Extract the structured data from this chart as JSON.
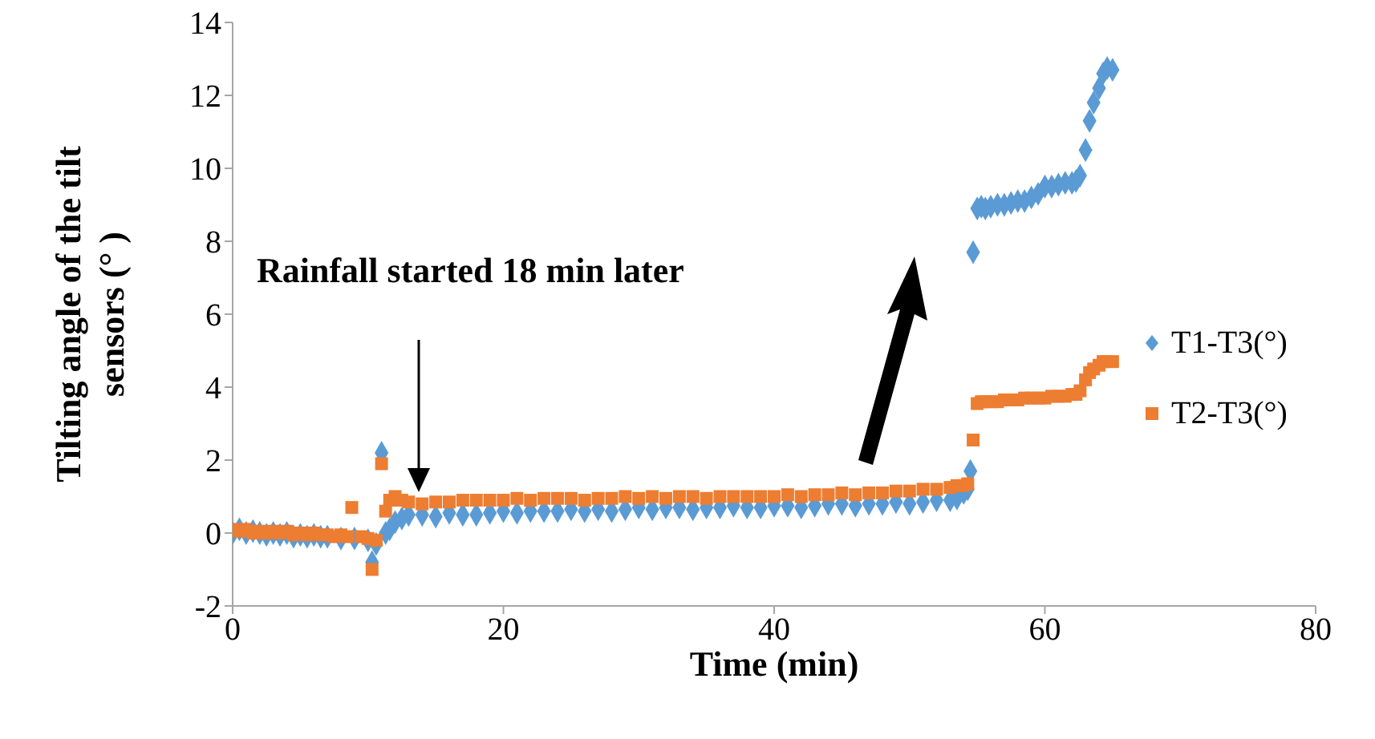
{
  "chart_data": {
    "type": "scatter",
    "xlabel": "Time (min)",
    "ylabel": "Tilting angle of the tilt sensors (° )",
    "xlim": [
      0,
      80
    ],
    "xticks": [
      0,
      20,
      40,
      60,
      80
    ],
    "ylim": [
      -2,
      14
    ],
    "yticks": [
      -2,
      0,
      2,
      4,
      6,
      8,
      10,
      12,
      14
    ],
    "grid": false,
    "legend": "right",
    "annotations": [
      "Rainfall started 18 min later"
    ],
    "series": [
      {
        "name": "T1-T3(°)",
        "color": "#5b9bd5",
        "marker": "diamond",
        "x": [
          0,
          0.5,
          1,
          1.5,
          2,
          2.5,
          3,
          3.5,
          4,
          4.5,
          5,
          5.5,
          6,
          6.5,
          7,
          7.5,
          8,
          8.5,
          9,
          9.5,
          10,
          10.3,
          10.6,
          11,
          11.3,
          11.6,
          12,
          12.5,
          13,
          14,
          15,
          16,
          17,
          18,
          19,
          20,
          21,
          22,
          23,
          24,
          25,
          26,
          27,
          28,
          29,
          30,
          31,
          32,
          33,
          34,
          35,
          36,
          37,
          38,
          39,
          40,
          41,
          42,
          43,
          44,
          45,
          46,
          47,
          48,
          49,
          50,
          51,
          52,
          53,
          53.5,
          54,
          54.3,
          54.5,
          54.7,
          55,
          55.3,
          55.6,
          56,
          56.5,
          57,
          57.5,
          58,
          58.5,
          59,
          59.5,
          60,
          60.5,
          61,
          61.5,
          62,
          62.3,
          62.6,
          63,
          63.3,
          63.6,
          64,
          64.3,
          64.6,
          65
        ],
        "values": [
          0,
          0.1,
          0,
          0.05,
          0,
          -0.05,
          0,
          -0.05,
          0,
          -0.1,
          -0.05,
          -0.1,
          -0.05,
          -0.1,
          -0.1,
          null,
          -0.15,
          null,
          -0.15,
          null,
          -0.2,
          -0.8,
          -0.3,
          2.2,
          0,
          0.1,
          0.3,
          0.4,
          0.5,
          0.5,
          0.45,
          0.55,
          0.5,
          0.5,
          0.55,
          0.6,
          0.55,
          0.6,
          0.6,
          0.6,
          0.65,
          0.6,
          0.65,
          0.6,
          0.65,
          0.7,
          0.65,
          0.7,
          0.7,
          0.65,
          0.7,
          0.7,
          0.75,
          0.7,
          0.7,
          0.75,
          0.75,
          0.7,
          0.75,
          0.8,
          0.8,
          0.75,
          0.8,
          0.8,
          0.85,
          0.8,
          0.85,
          0.9,
          0.9,
          0.95,
          1.1,
          1.2,
          1.7,
          7.7,
          8.9,
          8.95,
          8.9,
          8.95,
          9,
          9,
          9.05,
          9.1,
          9.1,
          9.2,
          9.3,
          9.5,
          9.5,
          9.55,
          9.6,
          9.6,
          9.65,
          9.8,
          10.5,
          11.3,
          11.8,
          12.2,
          12.6,
          12.75,
          12.7
        ]
      },
      {
        "name": "T2-T3(°)",
        "color": "#ed7d31",
        "marker": "square",
        "x": [
          0,
          0.5,
          1,
          1.5,
          2,
          2.5,
          3,
          3.5,
          4,
          4.5,
          5,
          5.5,
          6,
          6.5,
          7,
          7.5,
          8,
          8.5,
          8.8,
          9.5,
          10,
          10.3,
          10.6,
          11,
          11.3,
          11.6,
          12,
          12.5,
          13,
          14,
          15,
          16,
          17,
          18,
          19,
          20,
          21,
          22,
          23,
          24,
          25,
          26,
          27,
          28,
          29,
          30,
          31,
          32,
          33,
          34,
          35,
          36,
          37,
          38,
          39,
          40,
          41,
          42,
          43,
          44,
          45,
          46,
          47,
          48,
          49,
          50,
          51,
          52,
          53,
          53.5,
          54,
          54.3,
          54.7,
          55,
          55.3,
          55.6,
          56,
          56.5,
          57,
          57.5,
          58,
          58.5,
          59,
          59.5,
          60,
          60.5,
          61,
          61.5,
          62,
          62.3,
          62.6,
          63,
          63.3,
          63.6,
          64,
          64.3,
          64.6,
          65
        ],
        "values": [
          0.1,
          0.05,
          0.1,
          0,
          0.05,
          0,
          0.05,
          0,
          0.05,
          -0.05,
          0,
          -0.05,
          0,
          -0.05,
          -0.05,
          -0.1,
          -0.05,
          -0.1,
          0.7,
          -0.1,
          -0.15,
          -1,
          -0.2,
          1.9,
          0.6,
          0.9,
          1,
          0.9,
          0.85,
          0.8,
          0.85,
          0.85,
          0.9,
          0.9,
          0.9,
          0.9,
          0.95,
          0.9,
          0.95,
          0.95,
          0.95,
          0.9,
          0.95,
          0.95,
          1,
          0.95,
          1,
          0.95,
          1,
          1,
          0.95,
          1,
          1,
          1,
          1,
          1,
          1.05,
          1,
          1.05,
          1.05,
          1.1,
          1.05,
          1.1,
          1.1,
          1.15,
          1.15,
          1.2,
          1.2,
          1.25,
          1.3,
          1.3,
          1.35,
          2.55,
          3.55,
          3.6,
          3.6,
          3.6,
          3.6,
          3.65,
          3.65,
          3.65,
          3.7,
          3.7,
          3.7,
          3.7,
          3.75,
          3.75,
          3.75,
          3.8,
          3.8,
          3.9,
          4.2,
          4.4,
          4.5,
          4.6,
          4.7,
          4.7,
          4.7
        ]
      }
    ]
  }
}
